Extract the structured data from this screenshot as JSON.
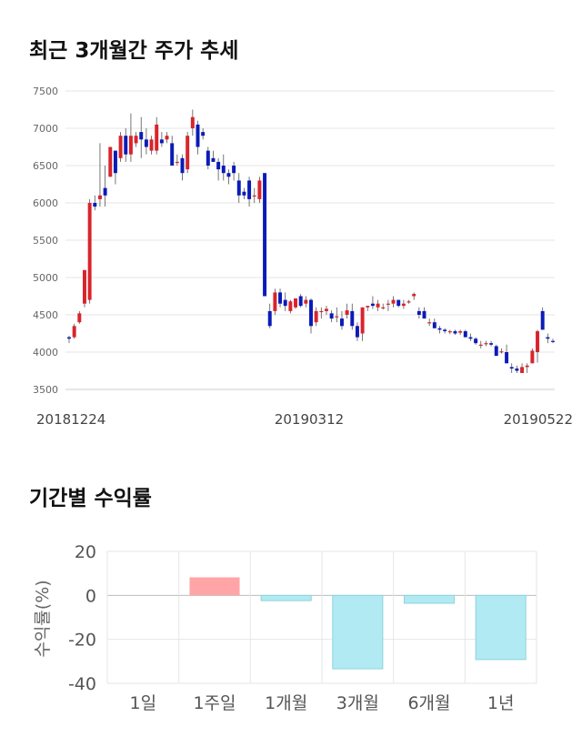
{
  "titles": {
    "price_trend": "최근 3개월간 주가 추세",
    "period_return": "기간별 수익률"
  },
  "colors": {
    "up": "#d9242c",
    "down": "#0a1bb8",
    "grid": "#e6e6e6",
    "axis_text": "#666666",
    "bar_positive": "#ffa4a7",
    "bar_negative": "#b1eaf2",
    "bar_negative_edge": "#8fd3dd"
  },
  "chart_data": [
    {
      "type": "candlestick",
      "title": "최근 3개월간 주가 추세",
      "y_ticks": [
        3500,
        4000,
        4500,
        5000,
        5500,
        6000,
        6500,
        7000,
        7500
      ],
      "ylim": [
        3500,
        7500
      ],
      "x_labels": [
        "20181224",
        "20190312",
        "20190522"
      ],
      "grid": true,
      "candles": [
        [
          4200,
          4220,
          4120,
          4180
        ],
        [
          4200,
          4380,
          4180,
          4350
        ],
        [
          4400,
          4550,
          4380,
          4520
        ],
        [
          4650,
          5100,
          4600,
          5100
        ],
        [
          4700,
          6050,
          4650,
          6000
        ],
        [
          6000,
          6100,
          5900,
          5950
        ],
        [
          6050,
          6800,
          5950,
          6100
        ],
        [
          6200,
          6500,
          5950,
          6100
        ],
        [
          6350,
          6750,
          6350,
          6750
        ],
        [
          6700,
          6700,
          6250,
          6400
        ],
        [
          6600,
          6950,
          6550,
          6900
        ],
        [
          6900,
          7000,
          6550,
          6650
        ],
        [
          6650,
          7200,
          6550,
          6900
        ],
        [
          6800,
          6950,
          6750,
          6900
        ],
        [
          6950,
          7150,
          6600,
          6850
        ],
        [
          6850,
          7000,
          6650,
          6750
        ],
        [
          6700,
          6900,
          6650,
          6850
        ],
        [
          6700,
          7150,
          6650,
          7050
        ],
        [
          6850,
          6950,
          6750,
          6800
        ],
        [
          6850,
          6950,
          6800,
          6900
        ],
        [
          6800,
          6900,
          6500,
          6500
        ],
        [
          6550,
          6650,
          6500,
          6550
        ],
        [
          6600,
          6650,
          6300,
          6400
        ],
        [
          6450,
          6950,
          6400,
          6900
        ],
        [
          7000,
          7250,
          6900,
          7150
        ],
        [
          7050,
          7100,
          6650,
          6750
        ],
        [
          6950,
          7000,
          6850,
          6900
        ],
        [
          6700,
          6750,
          6450,
          6500
        ],
        [
          6600,
          6700,
          6550,
          6550
        ],
        [
          6550,
          6600,
          6300,
          6450
        ],
        [
          6500,
          6650,
          6300,
          6400
        ],
        [
          6400,
          6450,
          6250,
          6350
        ],
        [
          6500,
          6550,
          6300,
          6400
        ],
        [
          6300,
          6400,
          6000,
          6100
        ],
        [
          6150,
          6200,
          6050,
          6100
        ],
        [
          6300,
          6350,
          5950,
          6050
        ],
        [
          6100,
          6200,
          6000,
          6100
        ],
        [
          6050,
          6350,
          6000,
          6300
        ],
        [
          6400,
          6400,
          4750,
          4750
        ],
        [
          4550,
          4650,
          4320,
          4350
        ],
        [
          4550,
          4850,
          4500,
          4800
        ],
        [
          4800,
          4850,
          4600,
          4650
        ],
        [
          4700,
          4800,
          4550,
          4620
        ],
        [
          4550,
          4700,
          4520,
          4680
        ],
        [
          4600,
          4720,
          4580,
          4720
        ],
        [
          4750,
          4780,
          4600,
          4620
        ],
        [
          4650,
          4750,
          4600,
          4700
        ],
        [
          4700,
          4720,
          4250,
          4350
        ],
        [
          4400,
          4600,
          4350,
          4550
        ],
        [
          4550,
          4600,
          4450,
          4550
        ],
        [
          4550,
          4620,
          4500,
          4580
        ],
        [
          4520,
          4560,
          4400,
          4450
        ],
        [
          4480,
          4600,
          4400,
          4480
        ],
        [
          4450,
          4550,
          4300,
          4350
        ],
        [
          4500,
          4650,
          4450,
          4560
        ],
        [
          4550,
          4650,
          4300,
          4350
        ],
        [
          4350,
          4400,
          4150,
          4200
        ],
        [
          4250,
          4600,
          4150,
          4600
        ],
        [
          4600,
          4620,
          4550,
          4620
        ],
        [
          4650,
          4750,
          4580,
          4620
        ],
        [
          4600,
          4700,
          4550,
          4650
        ],
        [
          4600,
          4650,
          4570,
          4600
        ],
        [
          4650,
          4700,
          4550,
          4650
        ],
        [
          4650,
          4750,
          4600,
          4700
        ],
        [
          4700,
          4700,
          4600,
          4620
        ],
        [
          4620,
          4700,
          4580,
          4650
        ],
        [
          4680,
          4700,
          4650,
          4680
        ],
        [
          4750,
          4800,
          4700,
          4780
        ],
        [
          4550,
          4600,
          4450,
          4500
        ],
        [
          4550,
          4600,
          4450,
          4450
        ],
        [
          4400,
          4450,
          4350,
          4400
        ],
        [
          4400,
          4450,
          4320,
          4320
        ],
        [
          4320,
          4350,
          4250,
          4300
        ],
        [
          4300,
          4320,
          4250,
          4280
        ],
        [
          4280,
          4300,
          4240,
          4280
        ],
        [
          4280,
          4300,
          4230,
          4250
        ],
        [
          4260,
          4300,
          4230,
          4280
        ],
        [
          4280,
          4300,
          4200,
          4200
        ],
        [
          4200,
          4250,
          4150,
          4180
        ],
        [
          4180,
          4200,
          4100,
          4120
        ],
        [
          4100,
          4150,
          4050,
          4100
        ],
        [
          4120,
          4150,
          4080,
          4120
        ],
        [
          4120,
          4150,
          4080,
          4100
        ],
        [
          4080,
          4100,
          3950,
          3950
        ],
        [
          4000,
          4050,
          3980,
          4010
        ],
        [
          4000,
          4100,
          3850,
          3850
        ],
        [
          3800,
          3850,
          3720,
          3780
        ],
        [
          3780,
          3820,
          3720,
          3750
        ],
        [
          3720,
          3850,
          3720,
          3800
        ],
        [
          3800,
          3850,
          3720,
          3820
        ],
        [
          3850,
          4050,
          3850,
          4020
        ],
        [
          4000,
          4300,
          3860,
          4280
        ],
        [
          4550,
          4600,
          4300,
          4300
        ],
        [
          4200,
          4250,
          4120,
          4180
        ],
        [
          4150,
          4180,
          4120,
          4140
        ]
      ]
    },
    {
      "type": "bar",
      "title": "기간별 수익률",
      "categories": [
        "1일",
        "1주일",
        "1개월",
        "3개월",
        "6개월",
        "1년"
      ],
      "values": [
        0,
        8.2,
        -2.4,
        -33.4,
        -3.6,
        -29.2
      ],
      "ylabel": "수익률(%)",
      "y_ticks": [
        20,
        0,
        -20,
        -40
      ],
      "ylim": [
        -40,
        20
      ],
      "grid": true
    }
  ]
}
